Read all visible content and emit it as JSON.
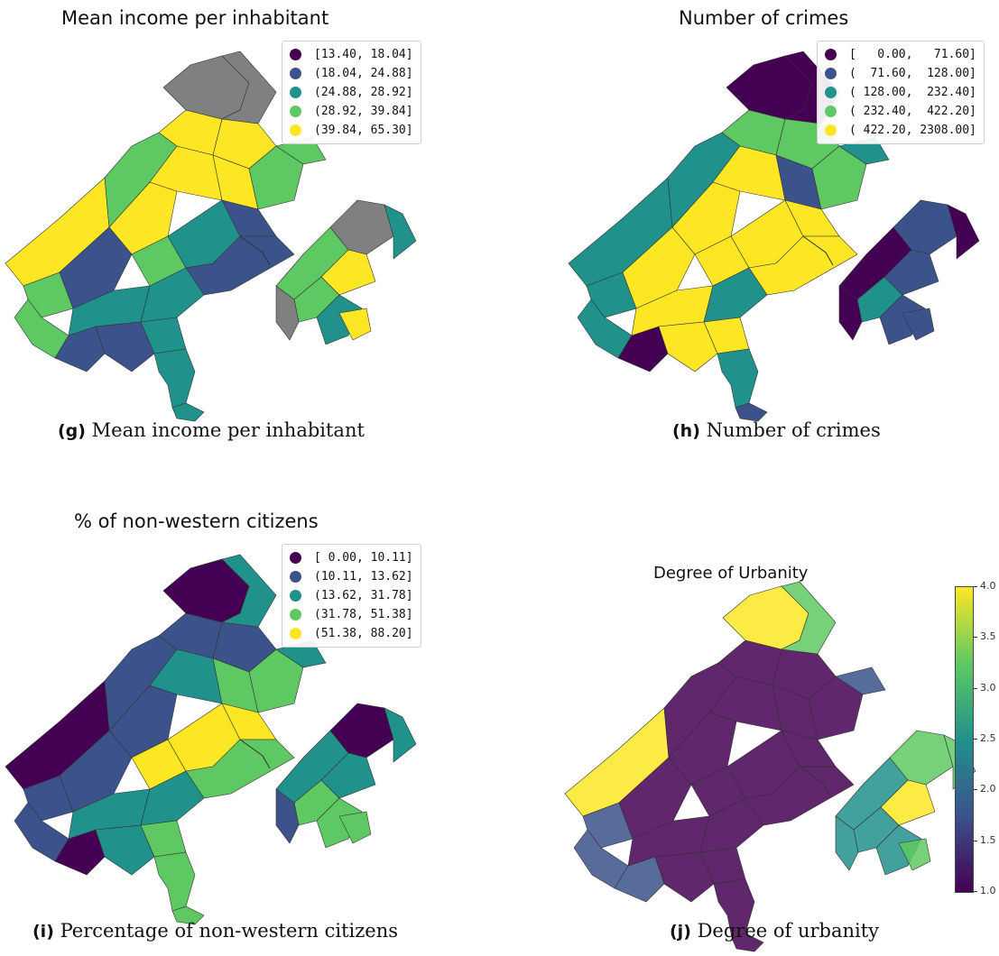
{
  "palette": {
    "c1": "#440154",
    "c2": "#3b528b",
    "c3": "#21918c",
    "c4": "#5ec962",
    "c5": "#fde725",
    "missing": "#808080"
  },
  "panels": {
    "g": {
      "title": "Mean income per inhabitant",
      "caption_tag": "(g)",
      "caption_text": "Mean income per inhabitant",
      "legend": [
        "[13.40, 18.04]",
        "(18.04, 24.88]",
        "(24.88, 28.92]",
        "(28.92, 39.84]",
        "(39.84, 65.30]"
      ]
    },
    "h": {
      "title": "Number of crimes",
      "caption_tag": "(h)",
      "caption_text": "Number of crimes",
      "legend": [
        "[   0.00,   71.60]",
        "(  71.60,  128.00]",
        "( 128.00,  232.40]",
        "( 232.40,  422.20]",
        "( 422.20, 2308.00]"
      ]
    },
    "i": {
      "title": "% of non-western citizens",
      "caption_tag": "(i)",
      "caption_text": "Percentage of non-western citizens",
      "legend": [
        "[ 0.00, 10.11]",
        "(10.11, 13.62]",
        "(13.62, 31.78]",
        "(31.78, 51.38]",
        "(51.38, 88.20]"
      ]
    },
    "j": {
      "title": "Degree of Urbanity",
      "caption_tag": "(j)",
      "caption_text": "Degree of urbanity",
      "colorbar_ticks": [
        "4.0",
        "3.5",
        "3.0",
        "2.5",
        "2.0",
        "1.5",
        "1.0"
      ]
    }
  }
}
